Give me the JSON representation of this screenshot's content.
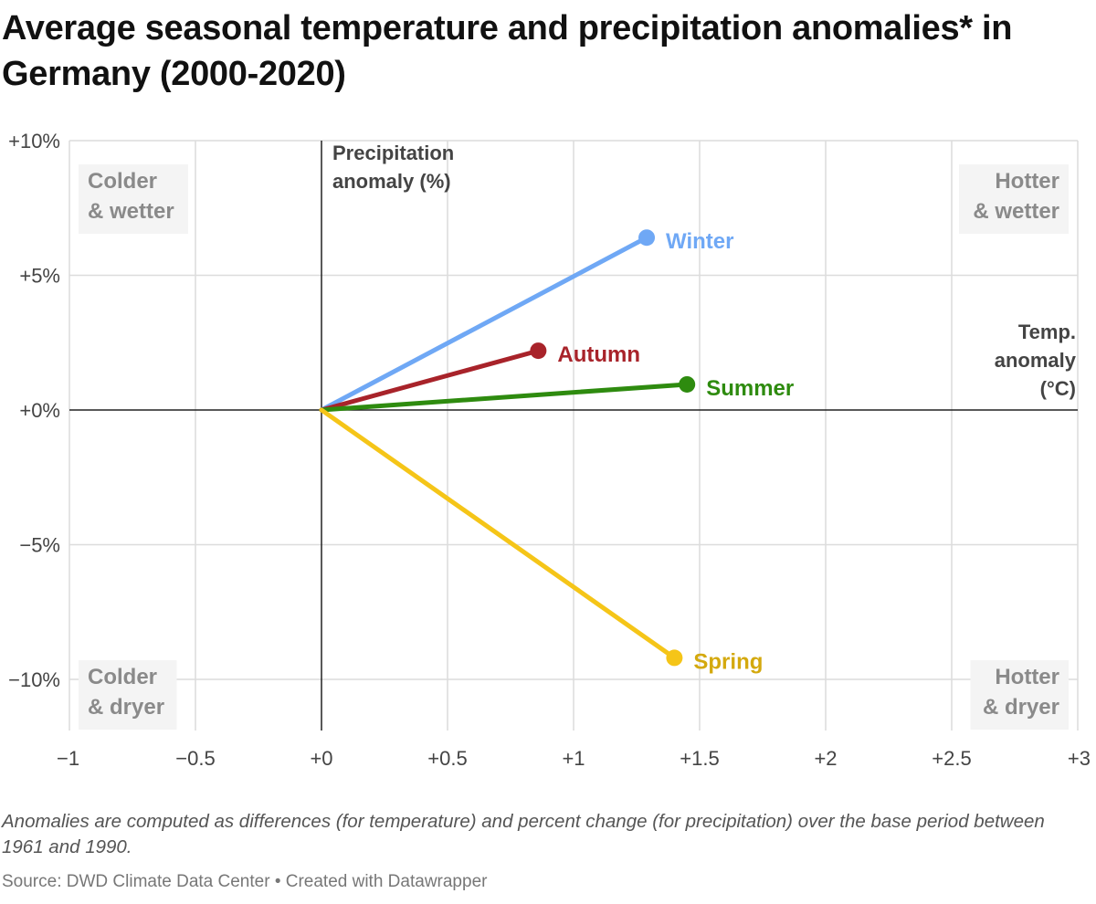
{
  "title": "Average seasonal temperature and precipitation anomalies* in Germany (2000-2020)",
  "footnote": "Anomalies are computed as differences (for temperature) and percent change (for precipitation) over the base period between 1961 and 1990.",
  "source_line": "Source: DWD Climate Data Center • Created with Datawrapper",
  "chart_data": {
    "type": "line",
    "xlabel": [
      "Temp.",
      "anomaly",
      "(°C)"
    ],
    "ylabel": [
      "Precipitation",
      "anomaly (%)"
    ],
    "xlim": [
      -1,
      3
    ],
    "ylim": [
      -12,
      10
    ],
    "x_ticks": [
      {
        "value": -1,
        "label": "−1"
      },
      {
        "value": -0.5,
        "label": "−0.5"
      },
      {
        "value": 0,
        "label": "+0"
      },
      {
        "value": 0.5,
        "label": "+0.5"
      },
      {
        "value": 1,
        "label": "+1"
      },
      {
        "value": 1.5,
        "label": "+1.5"
      },
      {
        "value": 2,
        "label": "+2"
      },
      {
        "value": 2.5,
        "label": "+2.5"
      },
      {
        "value": 3,
        "label": "+3"
      }
    ],
    "y_ticks": [
      {
        "value": 10,
        "label": "+10%"
      },
      {
        "value": 5,
        "label": "+5%"
      },
      {
        "value": 0,
        "label": "+0%"
      },
      {
        "value": -5,
        "label": "−5%"
      },
      {
        "value": -10,
        "label": "−10%"
      }
    ],
    "grid": true,
    "quadrant_labels": [
      {
        "lines": [
          "Colder",
          "& wetter"
        ],
        "position": "top-left"
      },
      {
        "lines": [
          "Hotter",
          "& wetter"
        ],
        "position": "top-right"
      },
      {
        "lines": [
          "Colder",
          "& dryer"
        ],
        "position": "bottom-left"
      },
      {
        "lines": [
          "Hotter",
          "& dryer"
        ],
        "position": "bottom-right"
      }
    ],
    "series": [
      {
        "name": "Winter",
        "color": "#6fa8f5",
        "label_color": "#6fa8f5",
        "x": [
          0,
          1.29
        ],
        "y": [
          0,
          6.4
        ]
      },
      {
        "name": "Autumn",
        "color": "#a8232a",
        "label_color": "#a8232a",
        "x": [
          0,
          0.86
        ],
        "y": [
          0,
          2.2
        ]
      },
      {
        "name": "Summer",
        "color": "#2e8b0f",
        "label_color": "#2e8b0f",
        "x": [
          0,
          1.45
        ],
        "y": [
          0,
          0.95
        ]
      },
      {
        "name": "Spring",
        "color": "#f5c518",
        "label_color": "#d4a90e",
        "x": [
          0,
          1.4
        ],
        "y": [
          0,
          -9.2
        ]
      }
    ]
  }
}
